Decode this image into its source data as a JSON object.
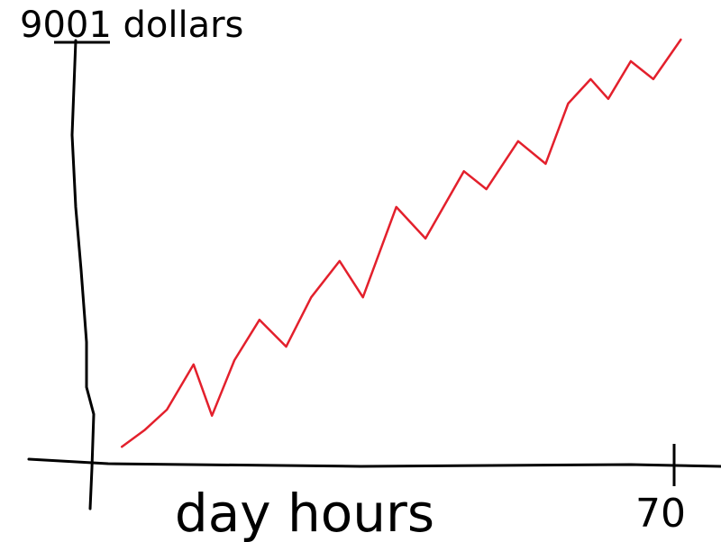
{
  "chart_data": {
    "type": "line",
    "xlabel": "day hours",
    "xlim": [
      0,
      70
    ],
    "xticks": [
      70
    ],
    "ylim": [
      0,
      9001
    ],
    "yticks": [
      {
        "value": 9001,
        "label": "9001 dollars"
      }
    ],
    "color": "#e3202c",
    "x": [
      3.8,
      6.5,
      9.2,
      12.4,
      14.6,
      17.3,
      20.3,
      23.5,
      26.5,
      29.9,
      32.7,
      36.7,
      40.2,
      44.8,
      47.5,
      51.3,
      54.6,
      57.3,
      60.0,
      62.1,
      64.8,
      67.5,
      70.8
    ],
    "values": [
      360,
      710,
      1150,
      2110,
      1020,
      2200,
      3060,
      2490,
      3540,
      4310,
      3540,
      5460,
      4790,
      6220,
      5840,
      6860,
      6380,
      7660,
      8180,
      7760,
      8560,
      8180,
      9020
    ]
  }
}
